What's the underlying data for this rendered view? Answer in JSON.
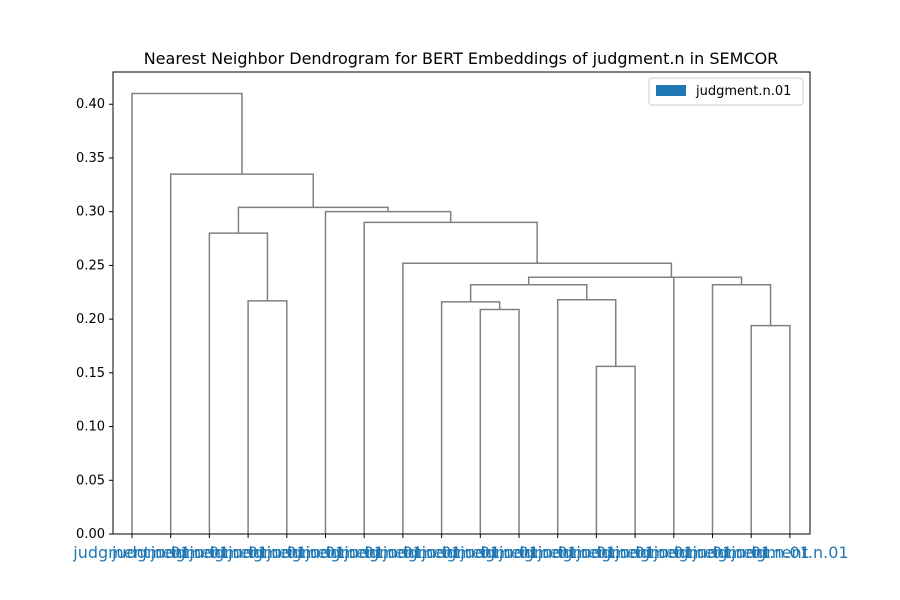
{
  "chart_data": {
    "type": "dendrogram",
    "title": "Nearest Neighbor Dendrogram for BERT Embeddings of judgment.n in SEMCOR",
    "xlabel": "",
    "ylabel": "",
    "ylim": [
      0,
      0.43
    ],
    "yticks": [
      0.0,
      0.05,
      0.1,
      0.15,
      0.2,
      0.25,
      0.3,
      0.35,
      0.4
    ],
    "ytick_labels": [
      "0.00",
      "0.05",
      "0.10",
      "0.15",
      "0.20",
      "0.25",
      "0.30",
      "0.35",
      "0.40"
    ],
    "leaf_labels": [
      "judgment.n.01",
      "judgment.n.01",
      "judgment.n.01",
      "judgment.n.01",
      "judgment.n.01",
      "judgment.n.01",
      "judgment.n.01",
      "judgment.n.01",
      "judgment.n.01",
      "judgment.n.01",
      "judgment.n.01",
      "judgment.n.01",
      "judgment.n.01",
      "judgment.n.01",
      "judgment.n.01",
      "judgment.n.01",
      "judgment.n.01",
      "judgment.n.01"
    ],
    "leaf_label_color": "#1f77b4",
    "link_color": "#808080",
    "merges": [
      {
        "left": 15,
        "right": 16,
        "height": 0.194
      },
      {
        "left": 8,
        "right": 9,
        "height": 0.156
      },
      {
        "left": 5,
        "right": 6,
        "height": 0.209
      },
      {
        "left": 4,
        "right": 5.5,
        "height": 0.216
      },
      {
        "left": 7,
        "right": 8.5,
        "height": 0.218
      },
      {
        "left": 1,
        "right": 2,
        "height": 0.217
      },
      {
        "left": 14,
        "right": 15.5,
        "height": 0.232
      },
      {
        "left": 4.75,
        "right": 7.75,
        "height": 0.232
      },
      {
        "left": 6.25,
        "right": 14.75,
        "height": 0.239
      },
      {
        "left": 3,
        "right": 10.5,
        "height": 0.252
      },
      {
        "left": 0,
        "right": 1.5,
        "height": 0.28
      },
      {
        "left": -1,
        "right": 6.75,
        "height": 0.29
      },
      {
        "left": -2,
        "right": 2.875,
        "height": 0.3
      },
      {
        "left": 0.75,
        "right": 0.4375,
        "height": 0.304
      },
      {
        "left": -3,
        "right": 0.59375,
        "height": 0.335
      },
      {
        "left": -4,
        "right": -1.203125,
        "height": 0.41
      }
    ],
    "legend": {
      "entries": [
        {
          "label": "judgment.n.01",
          "color": "#1f77b4"
        }
      ],
      "placement": "top-right"
    }
  }
}
